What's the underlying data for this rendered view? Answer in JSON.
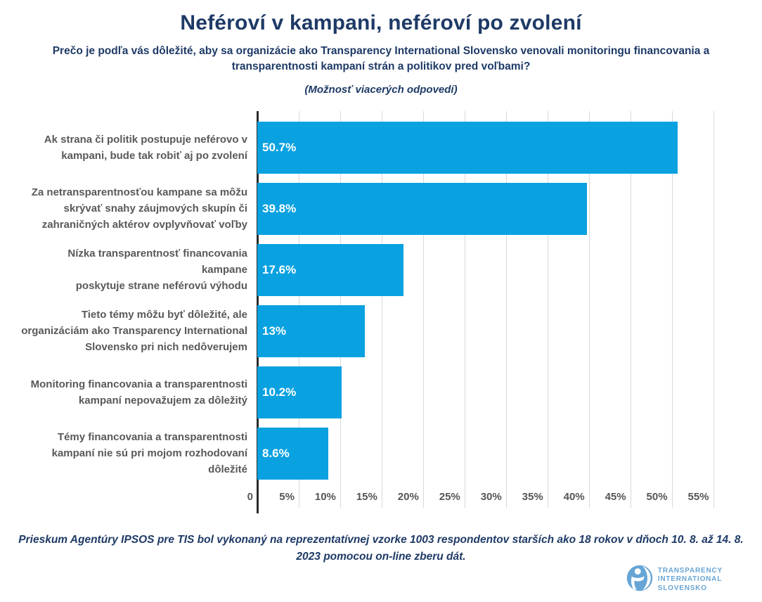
{
  "header": {
    "title": "Neféroví v kampani, neféroví po zvolení",
    "subtitle": "Prečo je podľa vás dôležité, aby sa organizácie ako Transparency International Slovensko venovali monitoringu financovania a transparentnosti kampaní strán a politikov pred voľbami?",
    "note": "(Možnosť viacerých odpovedí)"
  },
  "chart_data": {
    "type": "bar",
    "orientation": "horizontal",
    "title": "Neféroví v kampani, neféroví po zvolení",
    "xlabel": "",
    "ylabel": "",
    "categories": [
      "Ak strana či politik postupuje neférovo v\nkampani, bude tak robiť aj po zvolení",
      "Za netransparentnosťou kampane sa môžu\nskrývať snahy záujmových skupín či\nzahraničných aktérov ovplyvňovať voľby",
      "Nízka transparentnosť financovania kampane\nposkytuje strane neférovú výhodu",
      "Tieto témy môžu byť dôležité, ale\norganizáciám ako Transparency International\nSlovensko pri nich nedôverujem",
      "Monitoring financovania a transparentnosti\nkampaní nepovažujem za dôležitý",
      "Témy financovania a transparentnosti\nkampaní nie sú pri mojom rozhodovaní\ndôležité"
    ],
    "values": [
      50.7,
      39.8,
      17.6,
      13,
      10.2,
      8.6
    ],
    "value_labels": [
      "50.7%",
      "39.8%",
      "17.6%",
      "13%",
      "10.2%",
      "8.6%"
    ],
    "tick_values": [
      0,
      5,
      10,
      15,
      20,
      25,
      30,
      35,
      40,
      45,
      50,
      55
    ],
    "tick_labels": [
      "0",
      "5%",
      "10%",
      "15%",
      "20%",
      "25%",
      "30%",
      "35%",
      "40%",
      "45%",
      "50%",
      "55%"
    ],
    "axis_max": 57.5,
    "xlim": [
      0,
      57.5
    ],
    "grid": true,
    "legend_position": "none",
    "bar_color": "#09a1e0"
  },
  "footer": {
    "source_note": "Prieskum Agentúry IPSOS pre TIS bol vykonaný na reprezentatívnej vzorke 1003 respondentov starších ako 18 rokov v dňoch 10. 8. až 14. 8. 2023 pomocou on-line zberu dát.",
    "logo_lines": [
      "TRANSPARENCY",
      "INTERNATIONAL",
      "SLOVENSKO"
    ]
  },
  "colors": {
    "title": "#1e3a66",
    "bar": "#09a1e0",
    "category_label": "#595959",
    "tick_label": "#555555",
    "gridline": "#d9d9d9",
    "axis_line": "#2b2b2b",
    "background": "#ffffff",
    "logo": "#66a5d6"
  }
}
